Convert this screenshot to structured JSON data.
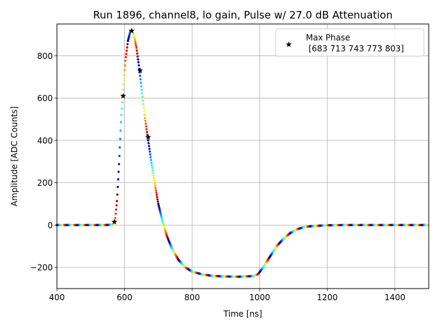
{
  "chart_data": {
    "type": "scatter",
    "title": "Run 1896, channel8, lo gain, Pulse w/ 27.0 dB Attenuation",
    "xlabel": "Time [ns]",
    "ylabel": "Amplitude [ADC Counts]",
    "xlim": [
      400,
      1500
    ],
    "ylim": [
      -300,
      950
    ],
    "xticks": [
      400,
      600,
      800,
      1000,
      1200,
      1400
    ],
    "yticks": [
      -200,
      0,
      200,
      400,
      600,
      800
    ],
    "x_tick_labels": [
      "400",
      "600",
      "800",
      "1000",
      "1200",
      "1400"
    ],
    "y_tick_labels": [
      "−200",
      "0",
      "200",
      "400",
      "600",
      "800"
    ],
    "grid": true,
    "colormap": "jet",
    "series": [
      {
        "kind": "waveform",
        "points": [
          [
            400,
            0
          ],
          [
            540,
            0
          ],
          [
            565,
            2
          ],
          [
            572,
            20
          ],
          [
            578,
            120
          ],
          [
            584,
            300
          ],
          [
            590,
            500
          ],
          [
            596,
            650
          ],
          [
            603,
            780
          ],
          [
            610,
            870
          ],
          [
            617,
            915
          ],
          [
            622,
            918
          ],
          [
            628,
            895
          ],
          [
            635,
            840
          ],
          [
            642,
            760
          ],
          [
            650,
            650
          ],
          [
            660,
            510
          ],
          [
            670,
            400
          ],
          [
            680,
            290
          ],
          [
            690,
            190
          ],
          [
            700,
            100
          ],
          [
            712,
            20
          ],
          [
            725,
            -50
          ],
          [
            740,
            -110
          ],
          [
            760,
            -165
          ],
          [
            780,
            -200
          ],
          [
            800,
            -220
          ],
          [
            830,
            -233
          ],
          [
            860,
            -240
          ],
          [
            900,
            -243
          ],
          [
            940,
            -244
          ],
          [
            980,
            -241
          ],
          [
            995,
            -232
          ],
          [
            1010,
            -200
          ],
          [
            1030,
            -150
          ],
          [
            1050,
            -100
          ],
          [
            1070,
            -65
          ],
          [
            1090,
            -38
          ],
          [
            1110,
            -20
          ],
          [
            1130,
            -10
          ],
          [
            1160,
            -4
          ],
          [
            1200,
            -1
          ],
          [
            1250,
            0
          ],
          [
            1500,
            0
          ]
        ]
      },
      {
        "name": "Max Phase\n [683 713 743 773 803]",
        "kind": "markers",
        "marker": "star",
        "color": "#000000",
        "points": [
          [
            570,
            15
          ],
          [
            596,
            610
          ],
          [
            621,
            918
          ],
          [
            646,
            730
          ],
          [
            670,
            415
          ]
        ]
      }
    ],
    "legend": {
      "position": "top-right",
      "label_line1": "Max Phase",
      "label_line2": " [683 713 743 773 803]"
    }
  }
}
